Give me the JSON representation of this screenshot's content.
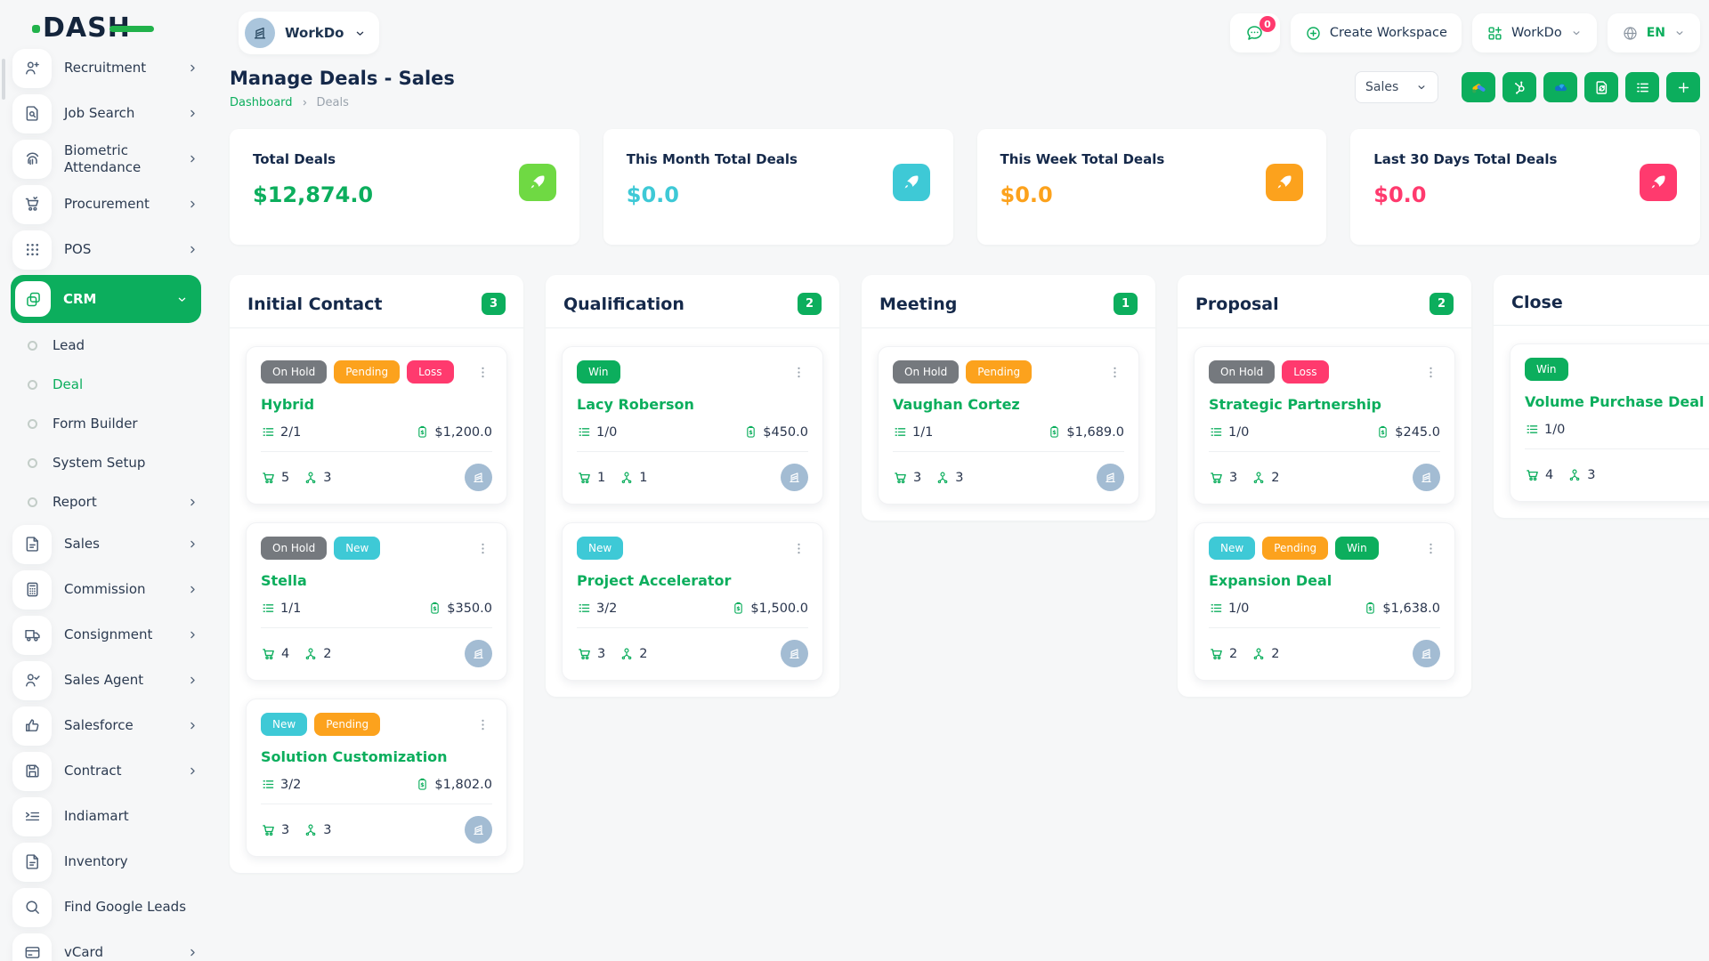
{
  "brand": {
    "logo_text": "DASH"
  },
  "theme": {
    "primary_green": "#0cae5d",
    "light_green": "#6fd943",
    "cyan": "#3ec9d6",
    "orange": "#fca21d",
    "pink": "#ff3a6e",
    "gray_badge": "#75797e",
    "navy_text": "#15294a"
  },
  "topbar": {
    "workspace_name": "WorkDo",
    "chat_badge": "0",
    "create_workspace_label": "Create Workspace",
    "workspace_switcher_label": "WorkDo",
    "language_code": "EN"
  },
  "page": {
    "title": "Manage Deals - Sales",
    "breadcrumb": [
      {
        "label": "Dashboard"
      },
      {
        "label": "Deals"
      }
    ]
  },
  "toolbar": {
    "pipeline_select_value": "Sales",
    "buttons": [
      {
        "name": "google-ads-button",
        "icon": "google-ads"
      },
      {
        "name": "hubspot-button",
        "icon": "hubspot"
      },
      {
        "name": "onedrive-button",
        "icon": "onedrive"
      },
      {
        "name": "export-button",
        "icon": "export-doc"
      },
      {
        "name": "list-view-button",
        "icon": "list"
      },
      {
        "name": "add-deal-button",
        "icon": "plus"
      }
    ]
  },
  "stats": [
    {
      "label": "Total Deals",
      "value": "$12,874.0",
      "value_color": "#0cae5d",
      "icon": "rocket",
      "icon_bg": "#6fd943"
    },
    {
      "label": "This Month Total Deals",
      "value": "$0.0",
      "value_color": "#3ec9d6",
      "icon": "rocket",
      "icon_bg": "#3ec9d6"
    },
    {
      "label": "This Week Total Deals",
      "value": "$0.0",
      "value_color": "#fca21d",
      "icon": "rocket",
      "icon_bg": "#fca21d"
    },
    {
      "label": "Last 30 Days Total Deals",
      "value": "$0.0",
      "value_color": "#ff3a6e",
      "icon": "rocket",
      "icon_bg": "#ff3a6e"
    }
  ],
  "badge_colors": {
    "On Hold": "#75797e",
    "Pending": "#fca21d",
    "Loss": "#ff3a6e",
    "New": "#3ec9d6",
    "Win": "#0cae5d"
  },
  "board": {
    "columns": [
      {
        "title": "Initial Contact",
        "count": "3",
        "cards": [
          {
            "name": "Hybrid",
            "badges": [
              "On Hold",
              "Pending",
              "Loss"
            ],
            "tasks": "2/1",
            "value": "$1,200.0",
            "products": "5",
            "users": "3"
          },
          {
            "name": "Stella",
            "badges": [
              "On Hold",
              "New"
            ],
            "tasks": "1/1",
            "value": "$350.0",
            "products": "4",
            "users": "2"
          },
          {
            "name": "Solution Customization",
            "badges": [
              "New",
              "Pending"
            ],
            "tasks": "3/2",
            "value": "$1,802.0",
            "products": "3",
            "users": "3"
          }
        ]
      },
      {
        "title": "Qualification",
        "count": "2",
        "cards": [
          {
            "name": "Lacy Roberson",
            "badges": [
              "Win"
            ],
            "tasks": "1/0",
            "value": "$450.0",
            "products": "1",
            "users": "1"
          },
          {
            "name": "Project Accelerator",
            "badges": [
              "New"
            ],
            "tasks": "3/2",
            "value": "$1,500.0",
            "products": "3",
            "users": "2"
          }
        ]
      },
      {
        "title": "Meeting",
        "count": "1",
        "cards": [
          {
            "name": "Vaughan Cortez",
            "badges": [
              "On Hold",
              "Pending"
            ],
            "tasks": "1/1",
            "value": "$1,689.0",
            "products": "3",
            "users": "3"
          }
        ]
      },
      {
        "title": "Proposal",
        "count": "2",
        "cards": [
          {
            "name": "Strategic Partnership",
            "badges": [
              "On Hold",
              "Loss"
            ],
            "tasks": "1/0",
            "value": "$245.0",
            "products": "3",
            "users": "2"
          },
          {
            "name": "Expansion Deal",
            "badges": [
              "New",
              "Pending",
              "Win"
            ],
            "tasks": "1/0",
            "value": "$1,638.0",
            "products": "2",
            "users": "2"
          }
        ]
      },
      {
        "title": "Close",
        "count": null,
        "cards": [
          {
            "name": "Volume Purchase Deal",
            "badges": [
              "Win"
            ],
            "tasks": "1/0",
            "value": "",
            "products": "4",
            "users": "3"
          }
        ]
      }
    ]
  },
  "sidebar": {
    "items": [
      {
        "type": "item",
        "label": "Recruitment",
        "icon": "person-plus",
        "chevron": true
      },
      {
        "type": "item",
        "label": "Job Search",
        "icon": "doc-search",
        "chevron": true
      },
      {
        "type": "item",
        "label": "Biometric Attendance",
        "icon": "fingerprint",
        "chevron": true
      },
      {
        "type": "item",
        "label": "Procurement",
        "icon": "procurement-cart",
        "chevron": true
      },
      {
        "type": "item",
        "label": "POS",
        "icon": "grid-dots",
        "chevron": true
      },
      {
        "type": "item",
        "label": "CRM",
        "icon": "copy",
        "chevron": true,
        "active": true,
        "expanded": true
      },
      {
        "type": "sub",
        "label": "Lead"
      },
      {
        "type": "sub",
        "label": "Deal",
        "active": true
      },
      {
        "type": "sub",
        "label": "Form Builder"
      },
      {
        "type": "sub",
        "label": "System Setup"
      },
      {
        "type": "sub",
        "label": "Report",
        "chevron": true
      },
      {
        "type": "item",
        "label": "Sales",
        "icon": "file",
        "chevron": true
      },
      {
        "type": "item",
        "label": "Commission",
        "icon": "calculator",
        "chevron": true
      },
      {
        "type": "item",
        "label": "Consignment",
        "icon": "truck",
        "chevron": true
      },
      {
        "type": "item",
        "label": "Sales Agent",
        "icon": "person-check",
        "chevron": true
      },
      {
        "type": "item",
        "label": "Salesforce",
        "icon": "thumbs-up",
        "chevron": true
      },
      {
        "type": "item",
        "label": "Contract",
        "icon": "floppy",
        "chevron": true
      },
      {
        "type": "item",
        "label": "Indiamart",
        "icon": "list-indent",
        "chevron": false
      },
      {
        "type": "item",
        "label": "Inventory",
        "icon": "file",
        "chevron": false
      },
      {
        "type": "item",
        "label": "Find Google Leads",
        "icon": "search",
        "chevron": false
      },
      {
        "type": "item",
        "label": "vCard",
        "icon": "credit-card",
        "chevron": true
      }
    ]
  }
}
